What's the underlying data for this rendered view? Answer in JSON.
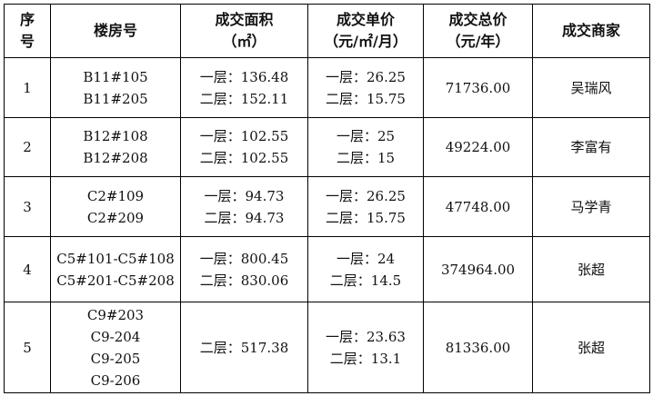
{
  "headers": [
    [
      "序",
      "号"
    ],
    [
      "楼房号"
    ],
    [
      "成交面积",
      "（㎡）"
    ],
    [
      "成交单价",
      "（元/㎡/月）"
    ],
    [
      "成交总价",
      "（元/年）"
    ],
    [
      "成交商家"
    ]
  ],
  "rows": [
    {
      "no": [
        "1"
      ],
      "building": [
        "B11#105",
        "B11#205"
      ],
      "area": [
        "一层：136.48",
        "二层：152.11"
      ],
      "unit_price": [
        "一层：26.25",
        "二层：15.75"
      ],
      "total": [
        "71736.00"
      ],
      "merchant": [
        "吴瑞风"
      ]
    },
    {
      "no": [
        "2"
      ],
      "building": [
        "B12#108",
        "B12#208"
      ],
      "area": [
        "一层：102.55",
        "二层：102.55"
      ],
      "unit_price": [
        "一层：25",
        "二层：15"
      ],
      "total": [
        "49224.00"
      ],
      "merchant": [
        "李富有"
      ]
    },
    {
      "no": [
        "3"
      ],
      "building": [
        "C2#109",
        "C2#209"
      ],
      "area": [
        "一层：94.73",
        "二层：94.73"
      ],
      "unit_price": [
        "一层：26.25",
        "二层：15.75"
      ],
      "total": [
        "47748.00"
      ],
      "merchant": [
        "马学青"
      ]
    },
    {
      "no": [
        "4"
      ],
      "building": [
        "C5#101-C5#108",
        "C5#201-C5#208"
      ],
      "area": [
        "一层：800.45",
        "二层：830.06"
      ],
      "unit_price": [
        "一层：24",
        "二层：14.5"
      ],
      "total": [
        "374964.00"
      ],
      "merchant": [
        "张超"
      ]
    },
    {
      "no": [
        "5"
      ],
      "building": [
        "C9#203",
        "C9-204",
        "C9-205",
        "C9-206"
      ],
      "area": [
        "二层：517.38"
      ],
      "unit_price": [
        "一层：23.63",
        "二层：13.1"
      ],
      "total": [
        "81336.00"
      ],
      "merchant": [
        "张超"
      ]
    }
  ]
}
